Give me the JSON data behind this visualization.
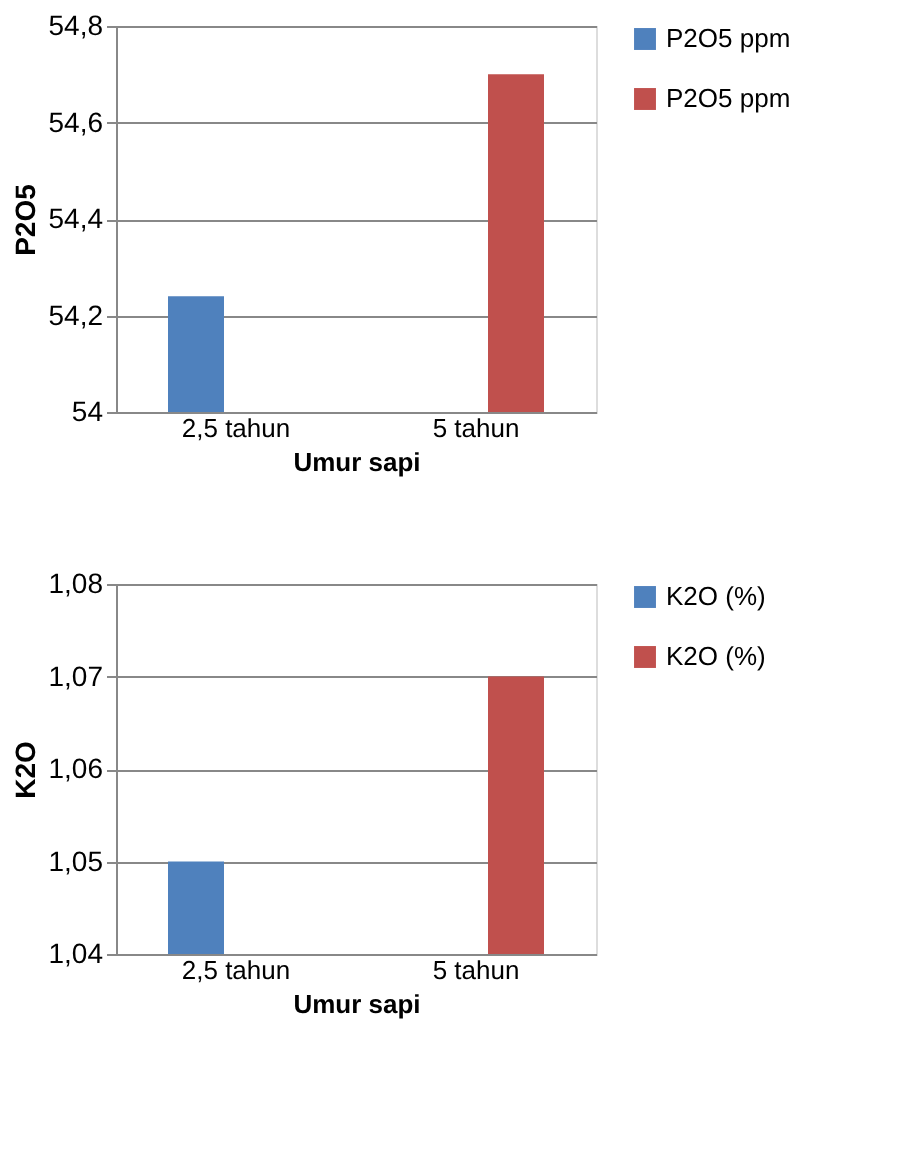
{
  "chart_data": [
    {
      "type": "bar",
      "categories": [
        "2,5 tahun",
        "5 tahun"
      ],
      "xlabel": "Umur sapi",
      "ylabel": "P2O5",
      "series": [
        {
          "name": "P2O5 ppm",
          "color": "#4f81bd",
          "values": [
            54.24,
            null
          ]
        },
        {
          "name": "P2O5 ppm",
          "color": "#c0504d",
          "values": [
            null,
            54.7
          ]
        }
      ],
      "ylim": [
        54,
        54.8
      ],
      "yticks": [
        {
          "value": 54,
          "label": "54"
        },
        {
          "value": 54.2,
          "label": "54,2"
        },
        {
          "value": 54.4,
          "label": "54,4"
        },
        {
          "value": 54.6,
          "label": "54,6"
        },
        {
          "value": 54.8,
          "label": "54,8"
        }
      ],
      "grid": "y",
      "legend": "right"
    },
    {
      "type": "bar",
      "categories": [
        "2,5 tahun",
        "5 tahun"
      ],
      "xlabel": "Umur sapi",
      "ylabel": "K2O",
      "series": [
        {
          "name": "K2O (%)",
          "color": "#4f81bd",
          "values": [
            1.05,
            null
          ]
        },
        {
          "name": "K2O (%)",
          "color": "#c0504d",
          "values": [
            null,
            1.07
          ]
        }
      ],
      "ylim": [
        1.04,
        1.08
      ],
      "yticks": [
        {
          "value": 1.04,
          "label": "1,04"
        },
        {
          "value": 1.05,
          "label": "1,05"
        },
        {
          "value": 1.06,
          "label": "1,06"
        },
        {
          "value": 1.07,
          "label": "1,07"
        },
        {
          "value": 1.08,
          "label": "1,08"
        }
      ],
      "grid": "y",
      "legend": "right"
    }
  ]
}
